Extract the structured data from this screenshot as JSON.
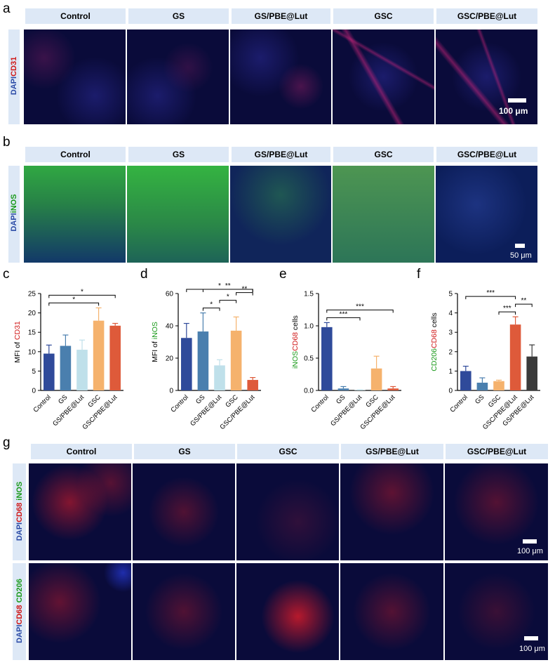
{
  "panel_letters": [
    "a",
    "b",
    "c",
    "d",
    "e",
    "f",
    "g"
  ],
  "a": {
    "headers": [
      "Control",
      "GS",
      "GS/PBE@Lut",
      "GSC",
      "GSC/PBE@Lut"
    ],
    "stain": [
      "DAPI",
      "CD31"
    ],
    "scale": "100 μm"
  },
  "b": {
    "headers": [
      "Control",
      "GS",
      "GS/PBE@Lut",
      "GSC",
      "GSC/PBE@Lut"
    ],
    "stain": [
      "DAPI",
      "iNOS"
    ],
    "scale": "50 μm"
  },
  "g": {
    "headers": [
      "Control",
      "GS",
      "GSC",
      "GS/PBE@Lut",
      "GSC/PBE@Lut"
    ],
    "row1_stain": [
      "DAPI",
      "CD68",
      "iNOS"
    ],
    "row2_stain": [
      "DAPI",
      "CD68",
      "CD206"
    ],
    "scale1": "100 μm",
    "scale2": "100 μm"
  },
  "colors": {
    "header_bg": "#dde8f6",
    "c1": "#2f4a9a",
    "c2": "#4a7fae",
    "c3": "#bfe0ea",
    "c4": "#f5b26d",
    "c5": "#de5a3a",
    "c6": "#3a3a3a"
  },
  "chart_data": [
    {
      "type": "bar",
      "panel": "c",
      "categories": [
        "Control",
        "GS",
        "GS/PBE@Lut",
        "GSC",
        "GSC/PBE@Lut"
      ],
      "values": [
        9.5,
        11.5,
        10.5,
        18,
        16.7
      ],
      "errors": [
        2.2,
        2.8,
        2.5,
        3.3,
        0.6
      ],
      "ylabel_parts": [
        "MFI of ",
        "CD31"
      ],
      "ylim": [
        0,
        25
      ],
      "yticks": [
        0,
        5,
        10,
        15,
        20,
        25
      ],
      "sig": [
        {
          "from": 0,
          "to": 3,
          "label": "*"
        },
        {
          "from": 0,
          "to": 4,
          "label": "*"
        }
      ]
    },
    {
      "type": "bar",
      "panel": "d",
      "categories": [
        "Control",
        "GS",
        "GS/PBE@Lut",
        "GSC",
        "GSC/PBE@Lut"
      ],
      "values": [
        32.5,
        36.5,
        15.5,
        37,
        6.5
      ],
      "errors": [
        9,
        11.5,
        3.5,
        8.5,
        1.5
      ],
      "ylabel_parts": [
        "MFI of ",
        "iNOS"
      ],
      "ylim": [
        0,
        60
      ],
      "yticks": [
        0,
        20,
        40,
        60
      ],
      "sig": [
        {
          "from": 0,
          "to": 4,
          "label": "*"
        },
        {
          "from": 1,
          "to": 4,
          "label": "**"
        },
        {
          "from": 1,
          "to": 2,
          "label": "*"
        },
        {
          "from": 2,
          "to": 3,
          "label": "*"
        },
        {
          "from": 3,
          "to": 4,
          "label": "**"
        }
      ]
    },
    {
      "type": "bar",
      "panel": "e",
      "categories": [
        "Control",
        "GS",
        "GS/PBE@Lut",
        "GSC",
        "GSC/PBE@Lut"
      ],
      "values": [
        0.98,
        0.03,
        0.005,
        0.34,
        0.03
      ],
      "errors": [
        0.07,
        0.03,
        0.005,
        0.19,
        0.03
      ],
      "ylabel_parts": [
        "iNOS",
        "CD68",
        " cells"
      ],
      "ylim": [
        0,
        1.5
      ],
      "yticks": [
        "0.0",
        "0.5",
        "1.0",
        "1.5"
      ],
      "sig": [
        {
          "from": 0,
          "to": 2,
          "label": "***"
        },
        {
          "from": 0,
          "to": 4,
          "label": "***"
        }
      ]
    },
    {
      "type": "bar",
      "panel": "f",
      "categories": [
        "Control",
        "GS",
        "GSC",
        "GSC/PBE@Lut",
        "GS/PBE@Lut"
      ],
      "values": [
        1.0,
        0.4,
        0.48,
        3.4,
        1.75
      ],
      "errors": [
        0.25,
        0.25,
        0.05,
        0.4,
        0.6
      ],
      "ylabel_parts": [
        "CD206",
        "CD68",
        " cells"
      ],
      "ylim": [
        0,
        5
      ],
      "yticks": [
        0,
        1,
        2,
        3,
        4,
        5
      ],
      "sig": [
        {
          "from": 0,
          "to": 3,
          "label": "***"
        },
        {
          "from": 2,
          "to": 3,
          "label": "***"
        },
        {
          "from": 3,
          "to": 4,
          "label": "**"
        }
      ]
    }
  ]
}
